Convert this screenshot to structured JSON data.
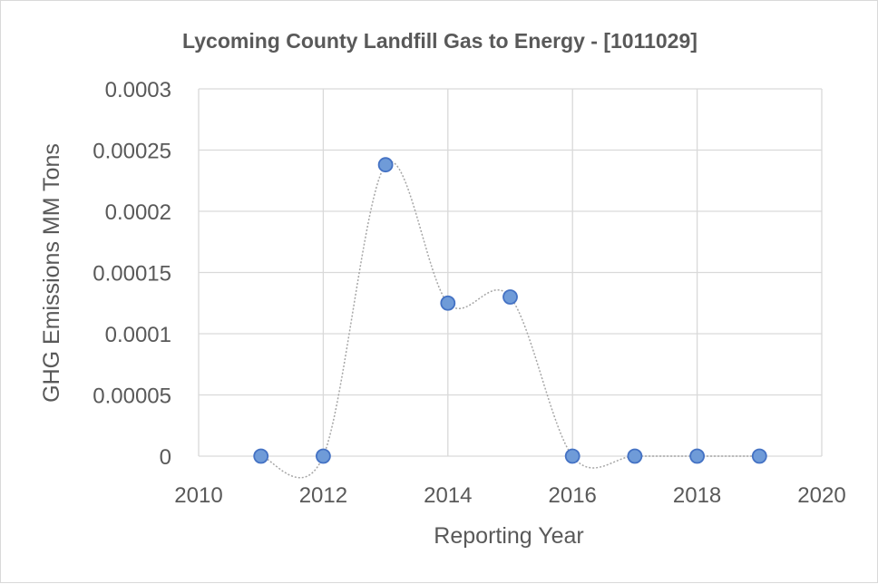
{
  "chart_data": {
    "type": "scatter",
    "title": "Lycoming County Landfill Gas to Energy - [1011029]",
    "xlabel": "Reporting Year",
    "ylabel": "GHG Emissions MM Tons",
    "xlim": [
      2010,
      2020
    ],
    "ylim": [
      0,
      0.0003
    ],
    "x_ticks": [
      "2010",
      "2012",
      "2014",
      "2016",
      "2018",
      "2020"
    ],
    "y_ticks": [
      "0",
      "0.00005",
      "0.0001",
      "0.00015",
      "0.0002",
      "0.00025",
      "0.0003"
    ],
    "grid": true,
    "legend": "none",
    "smoothed_line": true,
    "series": [
      {
        "x": [
          2011,
          2012,
          2013,
          2014,
          2015,
          2016,
          2017,
          2018,
          2019
        ],
        "y": [
          0,
          0,
          0.000238,
          0.000125,
          0.00013,
          0,
          0,
          0,
          0
        ],
        "marker_color": "#6f9bd8",
        "marker_edge": "#4472c4",
        "line_color": "#a6a6a6"
      }
    ]
  }
}
